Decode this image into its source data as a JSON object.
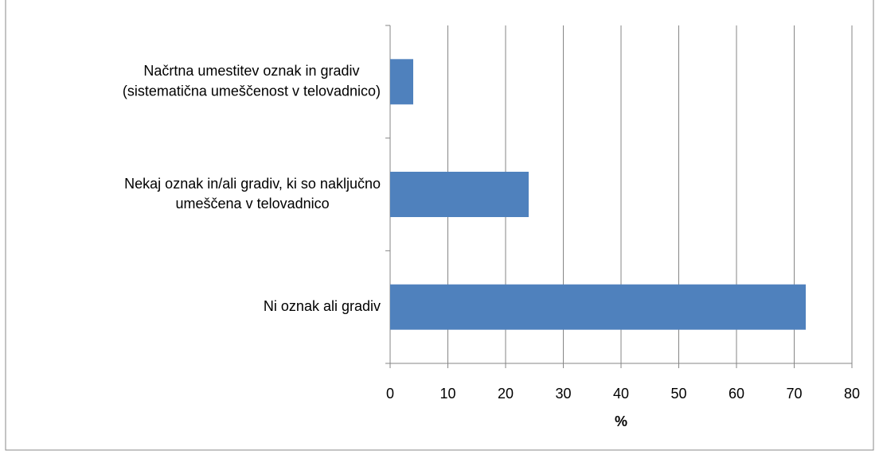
{
  "chart_data": {
    "type": "bar",
    "orientation": "horizontal",
    "categories": [
      "Načrtna umestitev oznak in gradiv\n(sistematična umeščenost v telovadnico)",
      "Nekaj oznak in/ali gradiv, ki so naključno\numeščena v telovadnico",
      "Ni oznak ali gradiv"
    ],
    "values": [
      4,
      24,
      72
    ],
    "color": "#4f81bd",
    "xlabel": "%",
    "xlim": [
      0,
      80
    ],
    "xticks": [
      0,
      10,
      20,
      30,
      40,
      50,
      60,
      70,
      80
    ],
    "grid": true
  }
}
